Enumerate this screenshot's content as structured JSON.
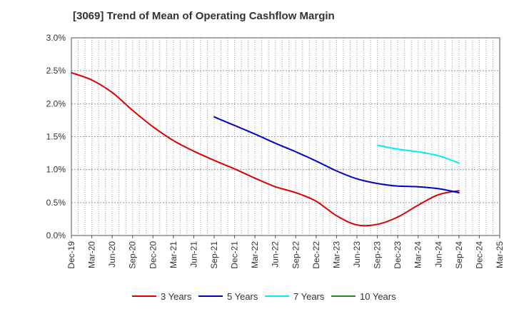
{
  "title": "[3069]  Trend of Mean of Operating Cashflow Margin",
  "chart_data": {
    "type": "line",
    "title": "[3069]  Trend of Mean of Operating Cashflow Margin",
    "xlabel": "",
    "ylabel": "",
    "ylim": [
      0,
      3.0
    ],
    "y_ticks": [
      "0.0%",
      "0.5%",
      "1.0%",
      "1.5%",
      "2.0%",
      "2.5%",
      "3.0%"
    ],
    "y_tick_values": [
      0,
      0.5,
      1.0,
      1.5,
      2.0,
      2.5,
      3.0
    ],
    "x_range": [
      "Dec-19",
      "Mar-25"
    ],
    "x_ticks": [
      "Dec-19",
      "Mar-20",
      "Jun-20",
      "Sep-20",
      "Dec-20",
      "Mar-21",
      "Jun-21",
      "Sep-21",
      "Dec-21",
      "Mar-22",
      "Jun-22",
      "Sep-22",
      "Dec-22",
      "Mar-23",
      "Jun-23",
      "Sep-23",
      "Dec-23",
      "Mar-24",
      "Jun-24",
      "Sep-24",
      "Dec-24",
      "Mar-25"
    ],
    "grid": true,
    "legend_position": "bottom",
    "series": [
      {
        "name": "3 Years",
        "color": "#dd0000",
        "points": [
          [
            "Dec-19",
            2.47
          ],
          [
            "Mar-20",
            2.36
          ],
          [
            "Jun-20",
            2.17
          ],
          [
            "Sep-20",
            1.9
          ],
          [
            "Dec-20",
            1.65
          ],
          [
            "Mar-21",
            1.44
          ],
          [
            "Jun-21",
            1.28
          ],
          [
            "Sep-21",
            1.14
          ],
          [
            "Dec-21",
            1.01
          ],
          [
            "Mar-22",
            0.87
          ],
          [
            "Jun-22",
            0.74
          ],
          [
            "Sep-22",
            0.65
          ],
          [
            "Dec-22",
            0.52
          ],
          [
            "Mar-23",
            0.3
          ],
          [
            "Jun-23",
            0.16
          ],
          [
            "Sep-23",
            0.17
          ],
          [
            "Dec-23",
            0.28
          ],
          [
            "Mar-24",
            0.46
          ],
          [
            "Jun-24",
            0.62
          ],
          [
            "Sep-24",
            0.68
          ]
        ]
      },
      {
        "name": "5 Years",
        "color": "#0000cc",
        "points": [
          [
            "Sep-21",
            1.8
          ],
          [
            "Dec-21",
            1.67
          ],
          [
            "Mar-22",
            1.54
          ],
          [
            "Jun-22",
            1.4
          ],
          [
            "Sep-22",
            1.27
          ],
          [
            "Dec-22",
            1.13
          ],
          [
            "Mar-23",
            0.98
          ],
          [
            "Jun-23",
            0.86
          ],
          [
            "Sep-23",
            0.79
          ],
          [
            "Dec-23",
            0.75
          ],
          [
            "Mar-24",
            0.74
          ],
          [
            "Jun-24",
            0.71
          ],
          [
            "Sep-24",
            0.65
          ]
        ]
      },
      {
        "name": "7 Years",
        "color": "#00eeee",
        "points": [
          [
            "Sep-23",
            1.37
          ],
          [
            "Dec-23",
            1.31
          ],
          [
            "Mar-24",
            1.27
          ],
          [
            "Jun-24",
            1.21
          ],
          [
            "Sep-24",
            1.1
          ]
        ]
      },
      {
        "name": "10 Years",
        "color": "#228b22",
        "points": []
      }
    ]
  },
  "background_color": "#ffffff",
  "grid_color": "#999999",
  "axis_color": "#555555"
}
